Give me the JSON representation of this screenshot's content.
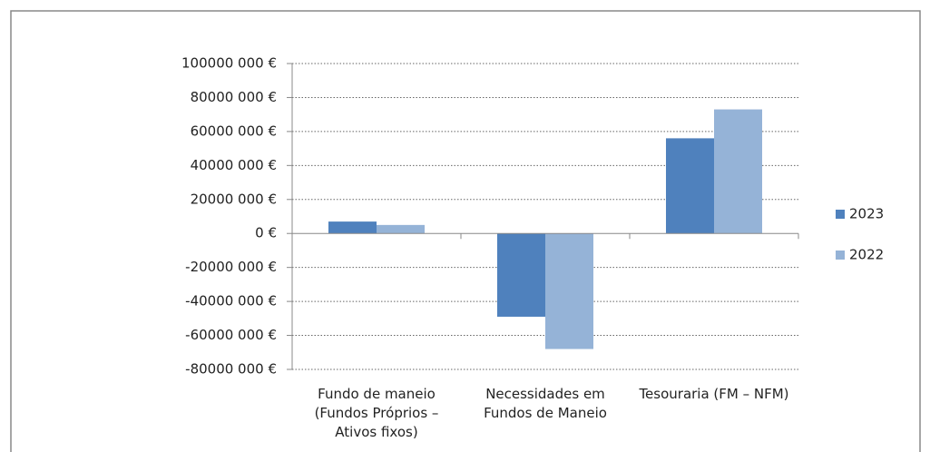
{
  "chart_data": {
    "type": "bar",
    "categories": [
      "Fundo de maneio (Fundos Próprios – Ativos fixos)",
      "Necessidades em Fundos de Maneio",
      "Tesouraria (FM – NFM)"
    ],
    "series": [
      {
        "name": "2023",
        "color": "#4f81bd",
        "values": [
          7000000,
          -49000000,
          56000000
        ]
      },
      {
        "name": "2022",
        "color": "#95b3d7",
        "values": [
          5000000,
          -68000000,
          73000000
        ]
      }
    ],
    "ylim": [
      -80000000,
      100000000
    ],
    "yticks": [
      {
        "value": -80000000,
        "label": "-80000 000 €"
      },
      {
        "value": -60000000,
        "label": "-60000 000 €"
      },
      {
        "value": -40000000,
        "label": "-40000 000 €"
      },
      {
        "value": -20000000,
        "label": "-20000 000 €"
      },
      {
        "value": 0,
        "label": "0 €"
      },
      {
        "value": 20000000,
        "label": "20000 000 €"
      },
      {
        "value": 40000000,
        "label": "40000 000 €"
      },
      {
        "value": 60000000,
        "label": "60000 000 €"
      },
      {
        "value": 80000000,
        "label": "80000 000 €"
      },
      {
        "value": 100000000,
        "label": "100000 000 €"
      }
    ],
    "grid": true,
    "legend": "right"
  }
}
